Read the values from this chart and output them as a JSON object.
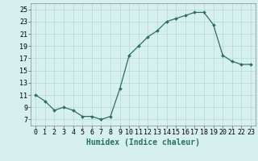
{
  "x": [
    0,
    1,
    2,
    3,
    4,
    5,
    6,
    7,
    8,
    9,
    10,
    11,
    12,
    13,
    14,
    15,
    16,
    17,
    18,
    19,
    20,
    21,
    22,
    23
  ],
  "y": [
    11.0,
    10.0,
    8.5,
    9.0,
    8.5,
    7.5,
    7.5,
    7.0,
    7.5,
    12.0,
    17.5,
    19.0,
    20.5,
    21.5,
    23.0,
    23.5,
    24.0,
    24.5,
    24.5,
    22.5,
    17.5,
    16.5,
    16.0,
    16.0
  ],
  "line_color": "#2d6e63",
  "marker": "D",
  "marker_size": 2,
  "bg_color": "#d6f0ef",
  "grid_color": "#b8d8d5",
  "xlabel": "Humidex (Indice chaleur)",
  "xlim": [
    -0.5,
    23.5
  ],
  "ylim": [
    6,
    26
  ],
  "yticks": [
    7,
    9,
    11,
    13,
    15,
    17,
    19,
    21,
    23,
    25
  ],
  "xticks": [
    0,
    1,
    2,
    3,
    4,
    5,
    6,
    7,
    8,
    9,
    10,
    11,
    12,
    13,
    14,
    15,
    16,
    17,
    18,
    19,
    20,
    21,
    22,
    23
  ],
  "tick_font_size": 6,
  "label_font_size": 7
}
